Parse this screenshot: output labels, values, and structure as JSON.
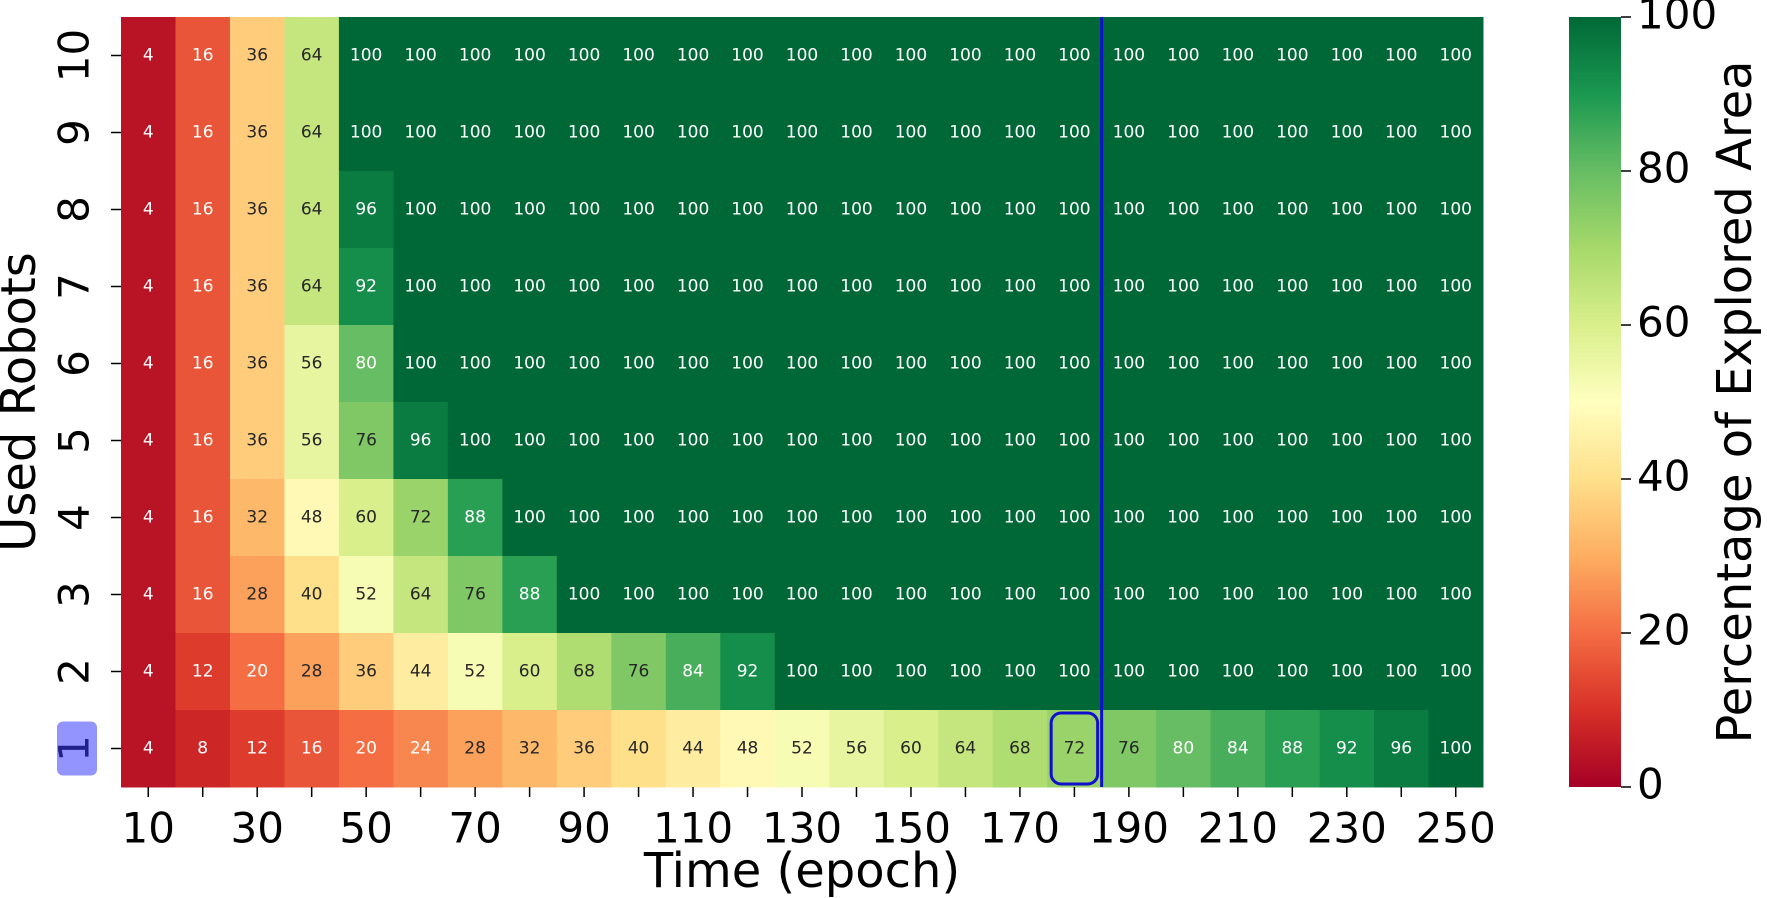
{
  "chart_data": {
    "type": "heatmap",
    "x_label": "Time (epoch)",
    "y_label": "Used Robots",
    "colorbar_label": "Percentage of Explored Area",
    "colormap": "RdYlGn",
    "x_categories": [
      "10",
      null,
      "30",
      null,
      "50",
      null,
      "70",
      null,
      "90",
      null,
      "110",
      null,
      "130",
      null,
      "150",
      null,
      "170",
      null,
      "190",
      null,
      "210",
      null,
      "230",
      null,
      "250"
    ],
    "y_categories": [
      "10",
      "9",
      "8",
      "7",
      "6",
      "5",
      "4",
      "3",
      "2",
      "1"
    ],
    "z": [
      [
        4,
        16,
        36,
        64,
        100,
        100,
        100,
        100,
        100,
        100,
        100,
        100,
        100,
        100,
        100,
        100,
        100,
        100,
        100,
        100,
        100,
        100,
        100,
        100,
        100
      ],
      [
        4,
        16,
        36,
        64,
        100,
        100,
        100,
        100,
        100,
        100,
        100,
        100,
        100,
        100,
        100,
        100,
        100,
        100,
        100,
        100,
        100,
        100,
        100,
        100,
        100
      ],
      [
        4,
        16,
        36,
        64,
        96,
        100,
        100,
        100,
        100,
        100,
        100,
        100,
        100,
        100,
        100,
        100,
        100,
        100,
        100,
        100,
        100,
        100,
        100,
        100,
        100
      ],
      [
        4,
        16,
        36,
        64,
        92,
        100,
        100,
        100,
        100,
        100,
        100,
        100,
        100,
        100,
        100,
        100,
        100,
        100,
        100,
        100,
        100,
        100,
        100,
        100,
        100
      ],
      [
        4,
        16,
        36,
        56,
        80,
        100,
        100,
        100,
        100,
        100,
        100,
        100,
        100,
        100,
        100,
        100,
        100,
        100,
        100,
        100,
        100,
        100,
        100,
        100,
        100
      ],
      [
        4,
        16,
        36,
        56,
        76,
        96,
        100,
        100,
        100,
        100,
        100,
        100,
        100,
        100,
        100,
        100,
        100,
        100,
        100,
        100,
        100,
        100,
        100,
        100,
        100
      ],
      [
        4,
        16,
        32,
        48,
        60,
        72,
        88,
        100,
        100,
        100,
        100,
        100,
        100,
        100,
        100,
        100,
        100,
        100,
        100,
        100,
        100,
        100,
        100,
        100,
        100
      ],
      [
        4,
        16,
        28,
        40,
        52,
        64,
        76,
        88,
        100,
        100,
        100,
        100,
        100,
        100,
        100,
        100,
        100,
        100,
        100,
        100,
        100,
        100,
        100,
        100,
        100
      ],
      [
        4,
        12,
        20,
        28,
        36,
        44,
        52,
        60,
        68,
        76,
        84,
        92,
        100,
        100,
        100,
        100,
        100,
        100,
        100,
        100,
        100,
        100,
        100,
        100,
        100
      ],
      [
        4,
        8,
        12,
        16,
        20,
        24,
        28,
        32,
        36,
        40,
        44,
        48,
        52,
        56,
        60,
        64,
        68,
        72,
        76,
        80,
        84,
        88,
        92,
        96,
        100
      ]
    ],
    "colorbar_lim": [
      0,
      100
    ],
    "colorbar_ticks": [
      0,
      20,
      40,
      60,
      80,
      100
    ]
  }
}
